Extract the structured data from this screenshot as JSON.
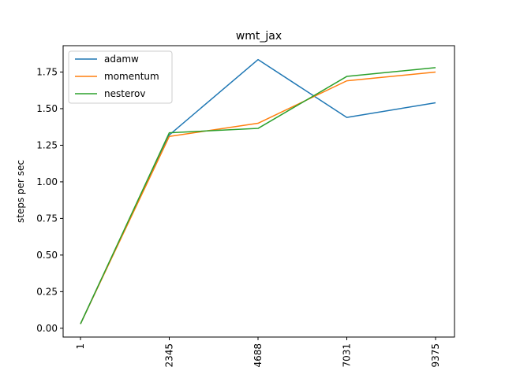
{
  "chart_data": {
    "type": "line",
    "title": "wmt_jax",
    "xlabel": "",
    "ylabel": "steps per sec",
    "categories": [
      "1",
      "2345",
      "4688",
      "7031",
      "9375"
    ],
    "ylim": [
      -0.06,
      1.93
    ],
    "yticks": [
      "0.00",
      "0.25",
      "0.50",
      "0.75",
      "1.00",
      "1.25",
      "1.50",
      "1.75"
    ],
    "grid": false,
    "legend_position": "upper-left",
    "series": [
      {
        "name": "adamw",
        "color": "#1f77b4",
        "values": [
          0.03,
          1.32,
          1.835,
          1.44,
          1.54
        ]
      },
      {
        "name": "momentum",
        "color": "#ff7f0e",
        "values": [
          0.03,
          1.31,
          1.4,
          1.69,
          1.75
        ]
      },
      {
        "name": "nesterov",
        "color": "#2ca02c",
        "values": [
          0.03,
          1.335,
          1.365,
          1.72,
          1.78
        ]
      }
    ]
  }
}
